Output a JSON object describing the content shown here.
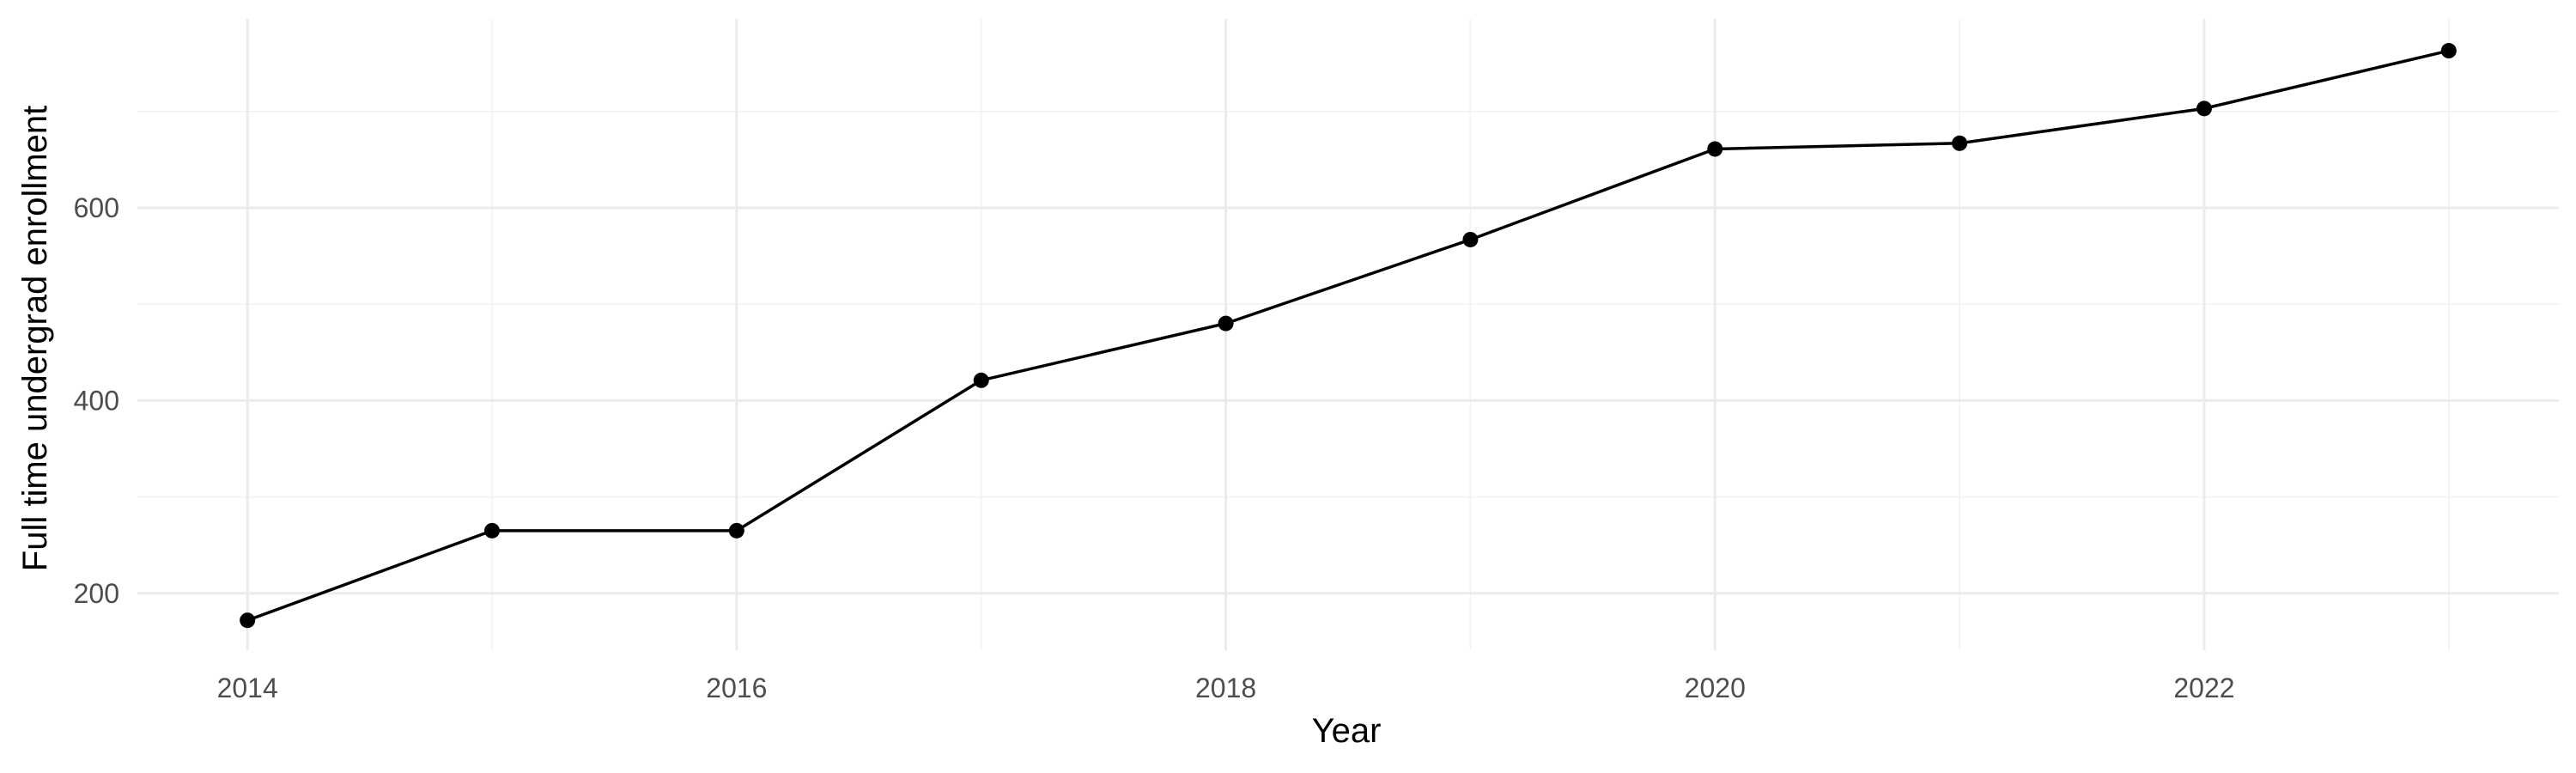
{
  "chart_data": {
    "type": "line",
    "title": "",
    "xlabel": "Year",
    "ylabel": "Full time undergrad enrollment",
    "x": [
      2014,
      2015,
      2016,
      2017,
      2018,
      2019,
      2020,
      2021,
      2022,
      2023
    ],
    "series": [
      {
        "values": [
          172,
          265,
          265,
          421,
          480,
          567,
          661,
          667,
          703,
          763
        ]
      }
    ],
    "xlim": [
      2013.55,
      2023.45
    ],
    "ylim": [
      141,
      796
    ],
    "x_ticks": [
      2014,
      2016,
      2018,
      2020,
      2022
    ],
    "x_tick_labels": [
      "2014",
      "2016",
      "2018",
      "2020",
      "2022"
    ],
    "y_ticks": [
      200,
      400,
      600
    ],
    "y_tick_labels": [
      "200",
      "400",
      "600"
    ],
    "grid": true,
    "legend": "none",
    "colors": {
      "line": "#000000",
      "point": "#000000",
      "grid": "#ebebeb"
    }
  }
}
